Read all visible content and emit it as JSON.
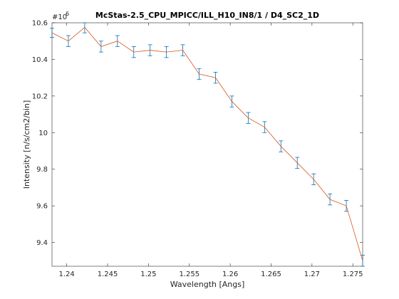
{
  "chart_data": {
    "type": "line",
    "title": "McStas-2.5_CPU_MPICC/ILL_H10_IN8/1 / D4_SC2_1D",
    "xlabel": "Wavelength [Angs]",
    "ylabel": "Intensity [n/s/cm2/bin]",
    "exponent_label": "#10",
    "exponent_power": "6",
    "xlim": [
      1.2382,
      1.2762
    ],
    "ylim": [
      9.27,
      10.6
    ],
    "x_ticks": [
      "1.24",
      "1.245",
      "1.25",
      "1.255",
      "1.26",
      "1.265",
      "1.27",
      "1.275"
    ],
    "x_tick_values": [
      1.24,
      1.245,
      1.25,
      1.255,
      1.26,
      1.265,
      1.27,
      1.275
    ],
    "y_ticks": [
      "9.4",
      "9.6",
      "9.8",
      "10",
      "10.2",
      "10.4",
      "10.6"
    ],
    "y_tick_values": [
      9.4,
      9.6,
      9.8,
      10.0,
      10.2,
      10.4,
      10.6
    ],
    "grid": false,
    "line_color": "#d95319",
    "errorbar_color": "#0072bd",
    "series": [
      {
        "x": [
          1.2382,
          1.2402,
          1.2422,
          1.2442,
          1.2462,
          1.2482,
          1.2502,
          1.2522,
          1.2542,
          1.2562,
          1.2582,
          1.2602,
          1.2622,
          1.2642,
          1.2662,
          1.2682,
          1.2702,
          1.2722,
          1.2742,
          1.2762
        ],
        "y": [
          10.545,
          10.5,
          10.575,
          10.47,
          10.5,
          10.44,
          10.45,
          10.44,
          10.45,
          10.32,
          10.3,
          10.17,
          10.08,
          10.03,
          9.925,
          9.835,
          9.745,
          9.635,
          9.6,
          9.3
        ],
        "err": [
          0.025,
          0.03,
          0.03,
          0.03,
          0.03,
          0.03,
          0.03,
          0.03,
          0.03,
          0.03,
          0.03,
          0.03,
          0.03,
          0.03,
          0.03,
          0.03,
          0.03,
          0.03,
          0.03,
          0.03
        ]
      }
    ]
  }
}
